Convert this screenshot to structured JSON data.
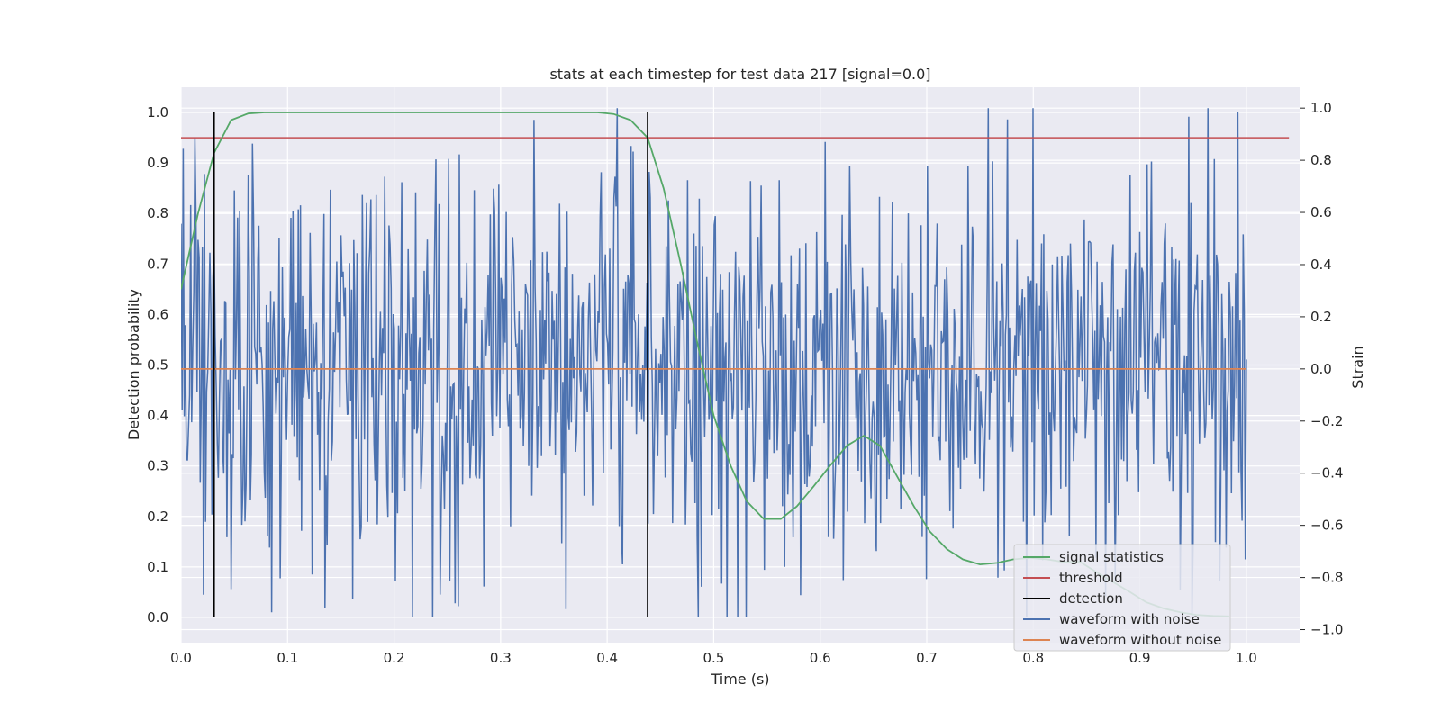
{
  "chart_data": {
    "type": "line",
    "title": "stats at each timestep for test data 217 [signal=0.0]",
    "xlabel": "Time (s)",
    "ylabel": "Detection probability",
    "ylabel_right": "Strain",
    "xlim": [
      0.0,
      1.05
    ],
    "ylim": [
      -0.05,
      1.05
    ],
    "ylim_right": [
      -1.05,
      1.08
    ],
    "x_ticks": [
      "0.0",
      "0.1",
      "0.2",
      "0.3",
      "0.4",
      "0.5",
      "0.6",
      "0.7",
      "0.8",
      "0.9",
      "1.0"
    ],
    "y_ticks": [
      "0.0",
      "0.1",
      "0.2",
      "0.3",
      "0.4",
      "0.5",
      "0.6",
      "0.7",
      "0.8",
      "0.9",
      "1.0"
    ],
    "y_ticks_right": [
      "−1.0",
      "−0.8",
      "−0.6",
      "−0.4",
      "−0.2",
      "0.0",
      "0.2",
      "0.4",
      "0.6",
      "0.8",
      "1.0"
    ],
    "grid": true,
    "legend_position": "lower-right",
    "colors": {
      "background": "#eaeaf2",
      "grid": "#ffffff",
      "signal": "#55a868",
      "threshold": "#c44e52",
      "detection": "#000000",
      "noisy": "#4c72b0",
      "clean": "#dd8452"
    },
    "series": [
      {
        "name": "signal statistics",
        "axis": "left",
        "x": [
          0.0,
          0.016,
          0.031,
          0.047,
          0.063,
          0.078,
          0.094,
          0.109,
          0.125,
          0.141,
          0.156,
          0.172,
          0.188,
          0.203,
          0.219,
          0.234,
          0.25,
          0.266,
          0.281,
          0.297,
          0.313,
          0.328,
          0.344,
          0.359,
          0.375,
          0.391,
          0.406,
          0.422,
          0.438,
          0.453,
          0.469,
          0.484,
          0.5,
          0.516,
          0.531,
          0.547,
          0.563,
          0.578,
          0.594,
          0.609,
          0.625,
          0.641,
          0.656,
          0.672,
          0.688,
          0.703,
          0.719,
          0.734,
          0.75,
          0.766,
          0.781,
          0.797,
          0.813,
          0.828,
          0.844,
          0.859,
          0.875,
          0.891,
          0.906,
          0.922,
          0.938,
          0.953,
          0.969,
          0.984
        ],
        "y": [
          0.65,
          0.8,
          0.92,
          0.985,
          0.998,
          1.0,
          1.0,
          1.0,
          1.0,
          1.0,
          1.0,
          1.0,
          1.0,
          1.0,
          1.0,
          1.0,
          1.0,
          1.0,
          1.0,
          1.0,
          1.0,
          1.0,
          1.0,
          1.0,
          1.0,
          1.0,
          0.997,
          0.985,
          0.95,
          0.85,
          0.7,
          0.55,
          0.4,
          0.3,
          0.23,
          0.195,
          0.195,
          0.22,
          0.26,
          0.3,
          0.34,
          0.36,
          0.34,
          0.28,
          0.22,
          0.17,
          0.135,
          0.115,
          0.105,
          0.108,
          0.115,
          0.118,
          0.115,
          0.11,
          0.11,
          0.09,
          0.07,
          0.05,
          0.03,
          0.018,
          0.01,
          0.005,
          0.003,
          0.002
        ]
      },
      {
        "name": "threshold",
        "axis": "left",
        "x": [
          0.0,
          1.04
        ],
        "y": [
          0.95,
          0.95
        ]
      },
      {
        "name": "detection",
        "axis": "left",
        "x": [
          0.031,
          0.438
        ],
        "y_range": [
          0.0,
          1.0
        ]
      },
      {
        "name": "waveform with noise",
        "axis": "right",
        "x_range": [
          0.0,
          1.0
        ],
        "n_points": 1000,
        "seed": 217,
        "amplitude_std": 0.38,
        "min": -0.95,
        "max": 1.0
      },
      {
        "name": "waveform without noise",
        "axis": "right",
        "x": [
          0.0,
          1.0
        ],
        "y": [
          0.0,
          0.0
        ]
      }
    ]
  }
}
